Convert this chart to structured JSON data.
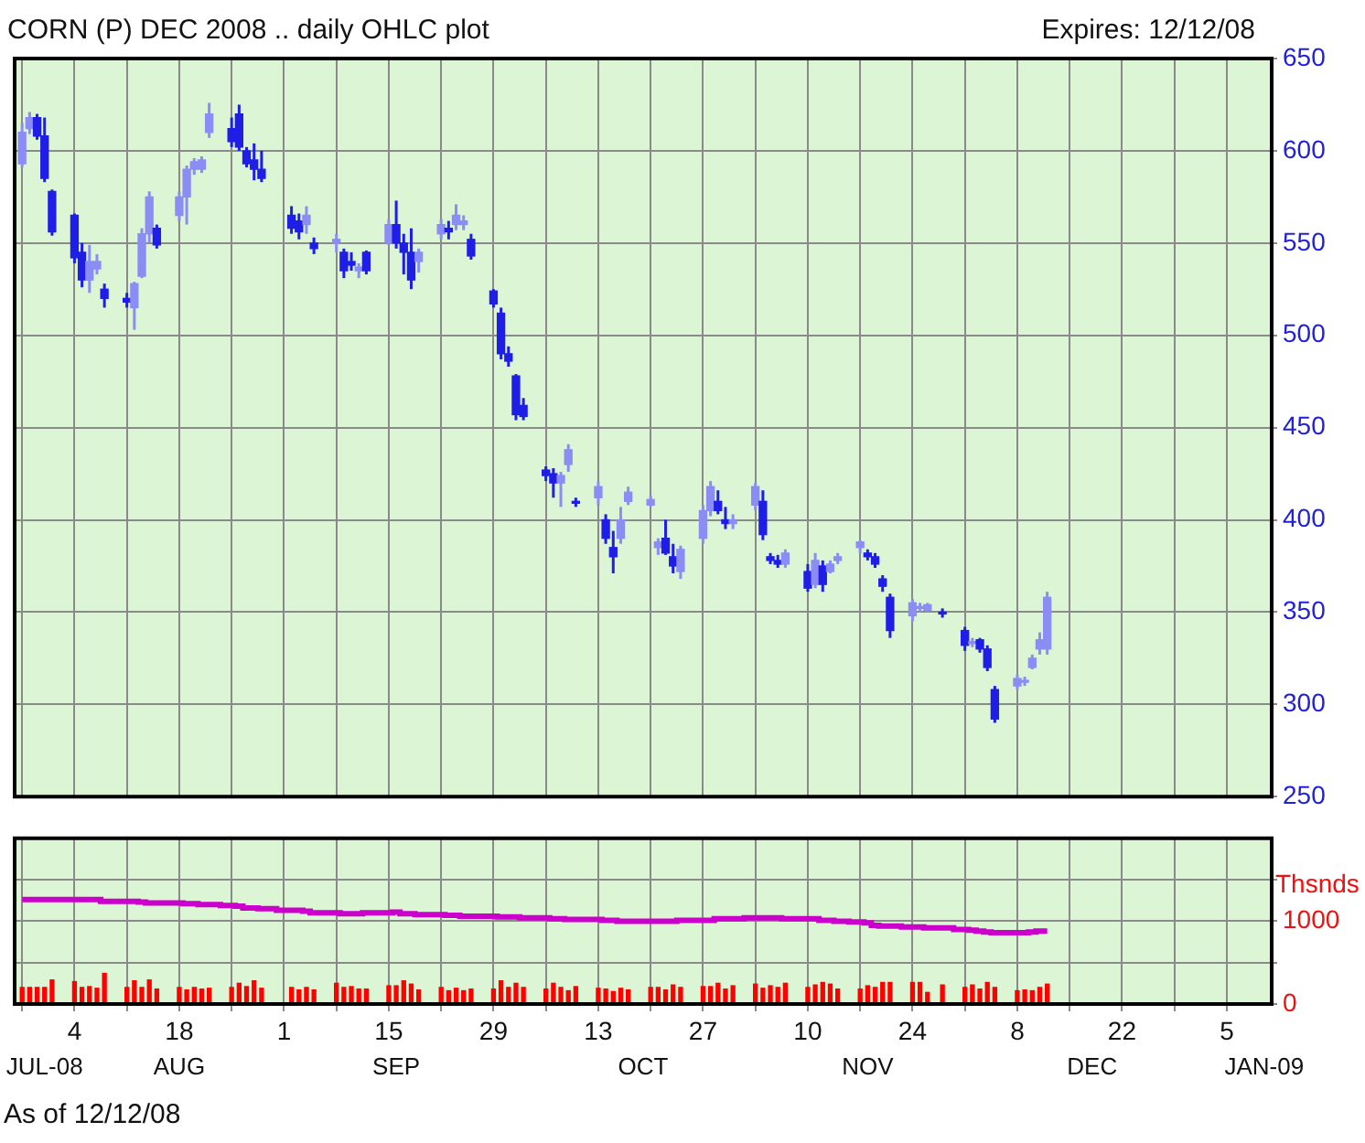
{
  "chart_data": [
    {
      "type": "candlestick",
      "title": "CORN (P) DEC 2008 .. daily OHLC plot",
      "subtitle": "Expires: 12/12/08",
      "colors": [
        "#8c8cf5",
        "#8c8cf5",
        "#1e1ee6",
        "#1e1ee6",
        "#1e1ee6",
        "#1e1ee6",
        "#1e1ee6",
        "#8c8cf5",
        "#8c8cf5",
        "#1e1ee6",
        "#1e1ee6",
        "#8c8cf5",
        "#8c8cf5",
        "#8c8cf5",
        "#1e1ee6",
        "#8c8cf5",
        "#8c8cf5",
        "#8c8cf5",
        "#8c8cf5",
        "#8c8cf5",
        "#1e1ee6",
        "#1e1ee6",
        "#1e1ee6",
        "#1e1ee6",
        "#1e1ee6",
        "#1e1ee6",
        "#1e1ee6",
        "#8c8cf5",
        "#1e1ee6",
        "#8c8cf5",
        "#1e1ee6",
        "#1e1ee6",
        "#8c8cf5",
        "#1e1ee6",
        "#8c8cf5",
        "#1e1ee6",
        "#1e1ee6",
        "#1e1ee6",
        "#8c8cf5",
        "#8c8cf5",
        "#1e1ee6",
        "#8c8cf5",
        "#8c8cf5",
        "#1e1ee6",
        "#1e1ee6",
        "#1e1ee6",
        "#1e1ee6",
        "#1e1ee6",
        "#1e1ee6",
        "#1e1ee6",
        "#1e1ee6",
        "#8c8cf5",
        "#8c8cf5",
        "#1e1ee6",
        "#8c8cf5",
        "#1e1ee6",
        "#1e1ee6",
        "#8c8cf5",
        "#8c8cf5",
        "#8c8cf5",
        "#8c8cf5",
        "#1e1ee6",
        "#1e1ee6",
        "#8c8cf5",
        "#8c8cf5",
        "#8c8cf5",
        "#1e1ee6",
        "#1e1ee6",
        "#8c8cf5",
        "#8c8cf5",
        "#1e1ee6",
        "#1e1ee6",
        "#1e1ee6",
        "#8c8cf5",
        "#1e1ee6",
        "#8c8cf5",
        "#1e1ee6",
        "#8c8cf5",
        "#8c8cf5",
        "#8c8cf5",
        "#1e1ee6",
        "#1e1ee6",
        "#1e1ee6",
        "#1e1ee6",
        "#8c8cf5",
        "#8c8cf5",
        "#8c8cf5",
        "#1e1ee6",
        "#1e1ee6",
        "#8c8cf5",
        "#1e1ee6",
        "#1e1ee6",
        "#1e1ee6",
        "#8c8cf5",
        "#8c8cf5",
        "#8c8cf5",
        "#8c8cf5",
        "#8c8cf5"
      ],
      "x": [
        "2008-07-28",
        "2008-07-29",
        "2008-07-30",
        "2008-07-31",
        "2008-08-01",
        "2008-08-04",
        "2008-08-05",
        "2008-08-06",
        "2008-08-07",
        "2008-08-08",
        "2008-08-11",
        "2008-08-12",
        "2008-08-13",
        "2008-08-14",
        "2008-08-15",
        "2008-08-18",
        "2008-08-19",
        "2008-08-20",
        "2008-08-21",
        "2008-08-22",
        "2008-08-25",
        "2008-08-26",
        "2008-08-27",
        "2008-08-28",
        "2008-08-29",
        "2008-09-02",
        "2008-09-03",
        "2008-09-04",
        "2008-09-05",
        "2008-09-08",
        "2008-09-09",
        "2008-09-10",
        "2008-09-11",
        "2008-09-12",
        "2008-09-15",
        "2008-09-16",
        "2008-09-17",
        "2008-09-18",
        "2008-09-19",
        "2008-09-22",
        "2008-09-23",
        "2008-09-24",
        "2008-09-25",
        "2008-09-26",
        "2008-09-29",
        "2008-09-30",
        "2008-10-01",
        "2008-10-02",
        "2008-10-03",
        "2008-10-06",
        "2008-10-07",
        "2008-10-08",
        "2008-10-09",
        "2008-10-10",
        "2008-10-13",
        "2008-10-14",
        "2008-10-15",
        "2008-10-16",
        "2008-10-17",
        "2008-10-20",
        "2008-10-21",
        "2008-10-22",
        "2008-10-23",
        "2008-10-24",
        "2008-10-27",
        "2008-10-28",
        "2008-10-29",
        "2008-10-30",
        "2008-10-31",
        "2008-11-03",
        "2008-11-04",
        "2008-11-05",
        "2008-11-06",
        "2008-11-07",
        "2008-11-10",
        "2008-11-11",
        "2008-11-12",
        "2008-11-13",
        "2008-11-14",
        "2008-11-17",
        "2008-11-18",
        "2008-11-19",
        "2008-11-20",
        "2008-11-21",
        "2008-11-24",
        "2008-11-25",
        "2008-11-26",
        "2008-11-28",
        "2008-12-01",
        "2008-12-02",
        "2008-12-03",
        "2008-12-04",
        "2008-12-05",
        "2008-12-08",
        "2008-12-09",
        "2008-12-10",
        "2008-12-11",
        "2008-12-12"
      ],
      "ohlc": [
        [
          593,
          615,
          591,
          610
        ],
        [
          612,
          621,
          609,
          618
        ],
        [
          618,
          620,
          606,
          608
        ],
        [
          608,
          618,
          583,
          585
        ],
        [
          578,
          579,
          554,
          556
        ],
        [
          565,
          566,
          539,
          542
        ],
        [
          545,
          550,
          526,
          530
        ],
        [
          530,
          549,
          523,
          540
        ],
        [
          536,
          544,
          533,
          540
        ],
        [
          525,
          528,
          515,
          520
        ],
        [
          520,
          523,
          515,
          518
        ],
        [
          515,
          529,
          503,
          528
        ],
        [
          532,
          558,
          531,
          555
        ],
        [
          555,
          578,
          550,
          575
        ],
        [
          558,
          560,
          547,
          549
        ],
        [
          565,
          578,
          562,
          575
        ],
        [
          575,
          592,
          560,
          590
        ],
        [
          590,
          596,
          587,
          594
        ],
        [
          590,
          597,
          588,
          595
        ],
        [
          610,
          626,
          607,
          620
        ],
        [
          612,
          618,
          602,
          605
        ],
        [
          620,
          625,
          600,
          602
        ],
        [
          600,
          602,
          591,
          593
        ],
        [
          595,
          604,
          584,
          590
        ],
        [
          590,
          600,
          583,
          585
        ],
        [
          565,
          570,
          555,
          558
        ],
        [
          562,
          566,
          552,
          556
        ],
        [
          560,
          570,
          555,
          565
        ],
        [
          550,
          553,
          544,
          547
        ],
        [
          550,
          555,
          545,
          552
        ],
        [
          545,
          547,
          531,
          535
        ],
        [
          540,
          545,
          535,
          538
        ],
        [
          535,
          539,
          531,
          537
        ],
        [
          545,
          546,
          533,
          535
        ],
        [
          550,
          563,
          549,
          560
        ],
        [
          560,
          573,
          547,
          550
        ],
        [
          550,
          555,
          533,
          545
        ],
        [
          545,
          558,
          525,
          530
        ],
        [
          540,
          547,
          534,
          545
        ],
        [
          555,
          563,
          552,
          560
        ],
        [
          558,
          562,
          552,
          556
        ],
        [
          560,
          571,
          557,
          565
        ],
        [
          560,
          565,
          557,
          562
        ],
        [
          552,
          555,
          541,
          543
        ],
        [
          524,
          525,
          515,
          517
        ],
        [
          512,
          515,
          487,
          490
        ],
        [
          490,
          494,
          483,
          486
        ],
        [
          478,
          479,
          454,
          457
        ],
        [
          462,
          466,
          454,
          456
        ],
        [
          427,
          429,
          421,
          424
        ],
        [
          425,
          428,
          412,
          420
        ],
        [
          420,
          426,
          407,
          424
        ],
        [
          430,
          441,
          426,
          438
        ],
        [
          410,
          412,
          407,
          409
        ],
        [
          412,
          421,
          408,
          418
        ],
        [
          400,
          403,
          387,
          390
        ],
        [
          385,
          394,
          371,
          380
        ],
        [
          390,
          407,
          387,
          400
        ],
        [
          410,
          418,
          408,
          415
        ],
        [
          408,
          413,
          407,
          411
        ],
        [
          385,
          390,
          381,
          388
        ],
        [
          390,
          400,
          381,
          382
        ],
        [
          380,
          387,
          371,
          375
        ],
        [
          372,
          386,
          368,
          384
        ],
        [
          390,
          408,
          387,
          405
        ],
        [
          405,
          421,
          402,
          418
        ],
        [
          410,
          416,
          403,
          405
        ],
        [
          400,
          407,
          395,
          398
        ],
        [
          398,
          403,
          395,
          400
        ],
        [
          408,
          420,
          405,
          418
        ],
        [
          410,
          416,
          389,
          392
        ],
        [
          380,
          382,
          376,
          378
        ],
        [
          378,
          381,
          374,
          376
        ],
        [
          376,
          384,
          374,
          382
        ],
        [
          372,
          376,
          361,
          363
        ],
        [
          365,
          382,
          363,
          378
        ],
        [
          375,
          378,
          361,
          365
        ],
        [
          372,
          378,
          371,
          376
        ],
        [
          378,
          382,
          376,
          380
        ],
        [
          385,
          389,
          382,
          388
        ],
        [
          382,
          384,
          378,
          380
        ],
        [
          380,
          382,
          374,
          376
        ],
        [
          368,
          370,
          361,
          364
        ],
        [
          358,
          360,
          336,
          340
        ],
        [
          348,
          357,
          345,
          355
        ],
        [
          352,
          355,
          350,
          353
        ],
        [
          351,
          355,
          350,
          354
        ],
        [
          350,
          352,
          347,
          349
        ],
        [
          340,
          342,
          329,
          332
        ],
        [
          333,
          336,
          331,
          334
        ],
        [
          335,
          336,
          328,
          330
        ],
        [
          330,
          332,
          318,
          320
        ],
        [
          308,
          310,
          290,
          292
        ],
        [
          310,
          316,
          308,
          314
        ],
        [
          312,
          315,
          310,
          313
        ],
        [
          320,
          327,
          319,
          325
        ],
        [
          330,
          339,
          327,
          335
        ],
        [
          330,
          361,
          327,
          358
        ]
      ],
      "xlim": [
        "2008-07-27",
        "2009-01-11"
      ],
      "xticks": [
        {
          "value": "2008-07-28",
          "label": null
        },
        {
          "value": "2008-08-04",
          "label": null
        },
        {
          "value": "2008-08-11",
          "label": null
        },
        {
          "value": "2008-08-18",
          "label": null
        },
        {
          "value": "2008-08-25",
          "label": null
        },
        {
          "value": "2008-09-01",
          "label": null
        },
        {
          "value": "2008-09-08",
          "label": null
        },
        {
          "value": "2008-09-15",
          "label": null
        },
        {
          "value": "2008-09-22",
          "label": null
        },
        {
          "value": "2008-09-29",
          "label": null
        },
        {
          "value": "2008-10-06",
          "label": null
        },
        {
          "value": "2008-10-13",
          "label": null
        },
        {
          "value": "2008-10-20",
          "label": null
        },
        {
          "value": "2008-10-27",
          "label": null
        },
        {
          "value": "2008-11-03",
          "label": null
        },
        {
          "value": "2008-11-10",
          "label": null
        },
        {
          "value": "2008-11-17",
          "label": null
        },
        {
          "value": "2008-11-24",
          "label": null
        },
        {
          "value": "2008-12-01",
          "label": null
        },
        {
          "value": "2008-12-08",
          "label": null
        },
        {
          "value": "2008-12-15",
          "label": null
        },
        {
          "value": "2008-12-22",
          "label": null
        },
        {
          "value": "2008-12-29",
          "label": null
        },
        {
          "value": "2009-01-05",
          "label": null
        }
      ],
      "ylim": [
        250,
        650
      ],
      "yticks": [
        250,
        300,
        350,
        400,
        450,
        500,
        550,
        600,
        650
      ],
      "grid": true,
      "tick_labels": "y"
    },
    {
      "type": "bar",
      "ylabel": "Thsnds",
      "annotations": [
        "As of 12/12/08"
      ],
      "x": [
        "2008-07-28",
        "2008-07-29",
        "2008-07-30",
        "2008-07-31",
        "2008-08-01",
        "2008-08-04",
        "2008-08-05",
        "2008-08-06",
        "2008-08-07",
        "2008-08-08",
        "2008-08-11",
        "2008-08-12",
        "2008-08-13",
        "2008-08-14",
        "2008-08-15",
        "2008-08-18",
        "2008-08-19",
        "2008-08-20",
        "2008-08-21",
        "2008-08-22",
        "2008-08-25",
        "2008-08-26",
        "2008-08-27",
        "2008-08-28",
        "2008-08-29",
        "2008-09-02",
        "2008-09-03",
        "2008-09-04",
        "2008-09-05",
        "2008-09-08",
        "2008-09-09",
        "2008-09-10",
        "2008-09-11",
        "2008-09-12",
        "2008-09-15",
        "2008-09-16",
        "2008-09-17",
        "2008-09-18",
        "2008-09-19",
        "2008-09-22",
        "2008-09-23",
        "2008-09-24",
        "2008-09-25",
        "2008-09-26",
        "2008-09-29",
        "2008-09-30",
        "2008-10-01",
        "2008-10-02",
        "2008-10-03",
        "2008-10-06",
        "2008-10-07",
        "2008-10-08",
        "2008-10-09",
        "2008-10-10",
        "2008-10-13",
        "2008-10-14",
        "2008-10-15",
        "2008-10-16",
        "2008-10-17",
        "2008-10-20",
        "2008-10-21",
        "2008-10-22",
        "2008-10-23",
        "2008-10-24",
        "2008-10-27",
        "2008-10-28",
        "2008-10-29",
        "2008-10-30",
        "2008-10-31",
        "2008-11-03",
        "2008-11-04",
        "2008-11-05",
        "2008-11-06",
        "2008-11-07",
        "2008-11-10",
        "2008-11-11",
        "2008-11-12",
        "2008-11-13",
        "2008-11-14",
        "2008-11-17",
        "2008-11-18",
        "2008-11-19",
        "2008-11-20",
        "2008-11-21",
        "2008-11-24",
        "2008-11-25",
        "2008-11-26",
        "2008-11-28",
        "2008-12-01",
        "2008-12-02",
        "2008-12-03",
        "2008-12-04",
        "2008-12-05",
        "2008-12-08",
        "2008-12-09",
        "2008-12-10",
        "2008-12-11",
        "2008-12-12"
      ],
      "series": [
        {
          "type": "bar",
          "color": "#ff0000",
          "values": [
            200,
            200,
            200,
            200,
            290,
            270,
            200,
            210,
            190,
            370,
            200,
            280,
            200,
            290,
            180,
            200,
            170,
            200,
            180,
            190,
            200,
            250,
            210,
            280,
            190,
            200,
            170,
            200,
            170,
            250,
            200,
            210,
            180,
            180,
            220,
            220,
            280,
            240,
            170,
            200,
            160,
            190,
            160,
            180,
            180,
            280,
            200,
            250,
            200,
            180,
            250,
            200,
            160,
            210,
            190,
            180,
            150,
            190,
            170,
            200,
            200,
            170,
            230,
            200,
            210,
            210,
            250,
            180,
            220,
            240,
            190,
            220,
            200,
            250,
            200,
            230,
            260,
            240,
            180,
            180,
            220,
            200,
            260,
            260,
            260,
            260,
            140,
            230,
            200,
            230,
            180,
            260,
            200,
            160,
            170,
            160,
            200,
            240
          ]
        },
        {
          "type": "step",
          "color": "#cc00cc",
          "values": [
            1260,
            1260,
            1260,
            1260,
            1260,
            1260,
            1260,
            1260,
            1260,
            1240,
            1240,
            1240,
            1230,
            1220,
            1220,
            1220,
            1210,
            1210,
            1200,
            1200,
            1190,
            1180,
            1160,
            1160,
            1150,
            1130,
            1130,
            1120,
            1100,
            1100,
            1090,
            1090,
            1090,
            1100,
            1100,
            1110,
            1090,
            1090,
            1080,
            1080,
            1070,
            1070,
            1060,
            1060,
            1060,
            1050,
            1050,
            1050,
            1040,
            1040,
            1030,
            1030,
            1020,
            1020,
            1020,
            1010,
            1010,
            1000,
            1000,
            1000,
            1000,
            1000,
            1000,
            1010,
            1010,
            1010,
            1030,
            1030,
            1030,
            1040,
            1040,
            1040,
            1040,
            1030,
            1030,
            1030,
            1010,
            1010,
            1000,
            990,
            980,
            950,
            940,
            940,
            930,
            930,
            920,
            920,
            900,
            890,
            880,
            870,
            860,
            860,
            860,
            870,
            880,
            880
          ]
        }
      ],
      "xlim": [
        "2008-07-27",
        "2009-01-11"
      ],
      "xticks": [
        {
          "value": "2008-07-28",
          "label": null
        },
        {
          "value": "2008-08-04",
          "label": "4"
        },
        {
          "value": "2008-08-11",
          "label": null
        },
        {
          "value": "2008-08-18",
          "label": "18"
        },
        {
          "value": "2008-08-25",
          "label": null
        },
        {
          "value": "2008-09-01",
          "label": "1"
        },
        {
          "value": "2008-09-08",
          "label": null
        },
        {
          "value": "2008-09-15",
          "label": "15"
        },
        {
          "value": "2008-09-22",
          "label": null
        },
        {
          "value": "2008-09-29",
          "label": "29"
        },
        {
          "value": "2008-10-06",
          "label": null
        },
        {
          "value": "2008-10-13",
          "label": "13"
        },
        {
          "value": "2008-10-20",
          "label": null
        },
        {
          "value": "2008-10-27",
          "label": "27"
        },
        {
          "value": "2008-11-03",
          "label": null
        },
        {
          "value": "2008-11-10",
          "label": "10"
        },
        {
          "value": "2008-11-17",
          "label": null
        },
        {
          "value": "2008-11-24",
          "label": "24"
        },
        {
          "value": "2008-12-01",
          "label": null
        },
        {
          "value": "2008-12-08",
          "label": "8"
        },
        {
          "value": "2008-12-15",
          "label": null
        },
        {
          "value": "2008-12-22",
          "label": "22"
        },
        {
          "value": "2008-12-29",
          "label": null
        },
        {
          "value": "2009-01-05",
          "label": "5"
        }
      ],
      "x2lim": [
        "2008-07-27",
        "2009-01-11"
      ],
      "x2ticks": [
        {
          "value": "2008-07-31",
          "label": "JUL-08"
        },
        {
          "value": "2008-08-18",
          "label": "AUG"
        },
        {
          "value": "2008-09-16",
          "label": "SEP"
        },
        {
          "value": "2008-10-19",
          "label": "OCT"
        },
        {
          "value": "2008-11-18",
          "label": "NOV"
        },
        {
          "value": "2008-12-18",
          "label": "DEC"
        },
        {
          "value": "2009-01-10",
          "label": "JAN-09"
        }
      ],
      "ylim": [
        0,
        2000
      ],
      "yticks": [
        0,
        {
          "value": 500,
          "label": null
        },
        1000,
        {
          "value": 1500,
          "label": null
        }
      ],
      "grid": true
    }
  ]
}
